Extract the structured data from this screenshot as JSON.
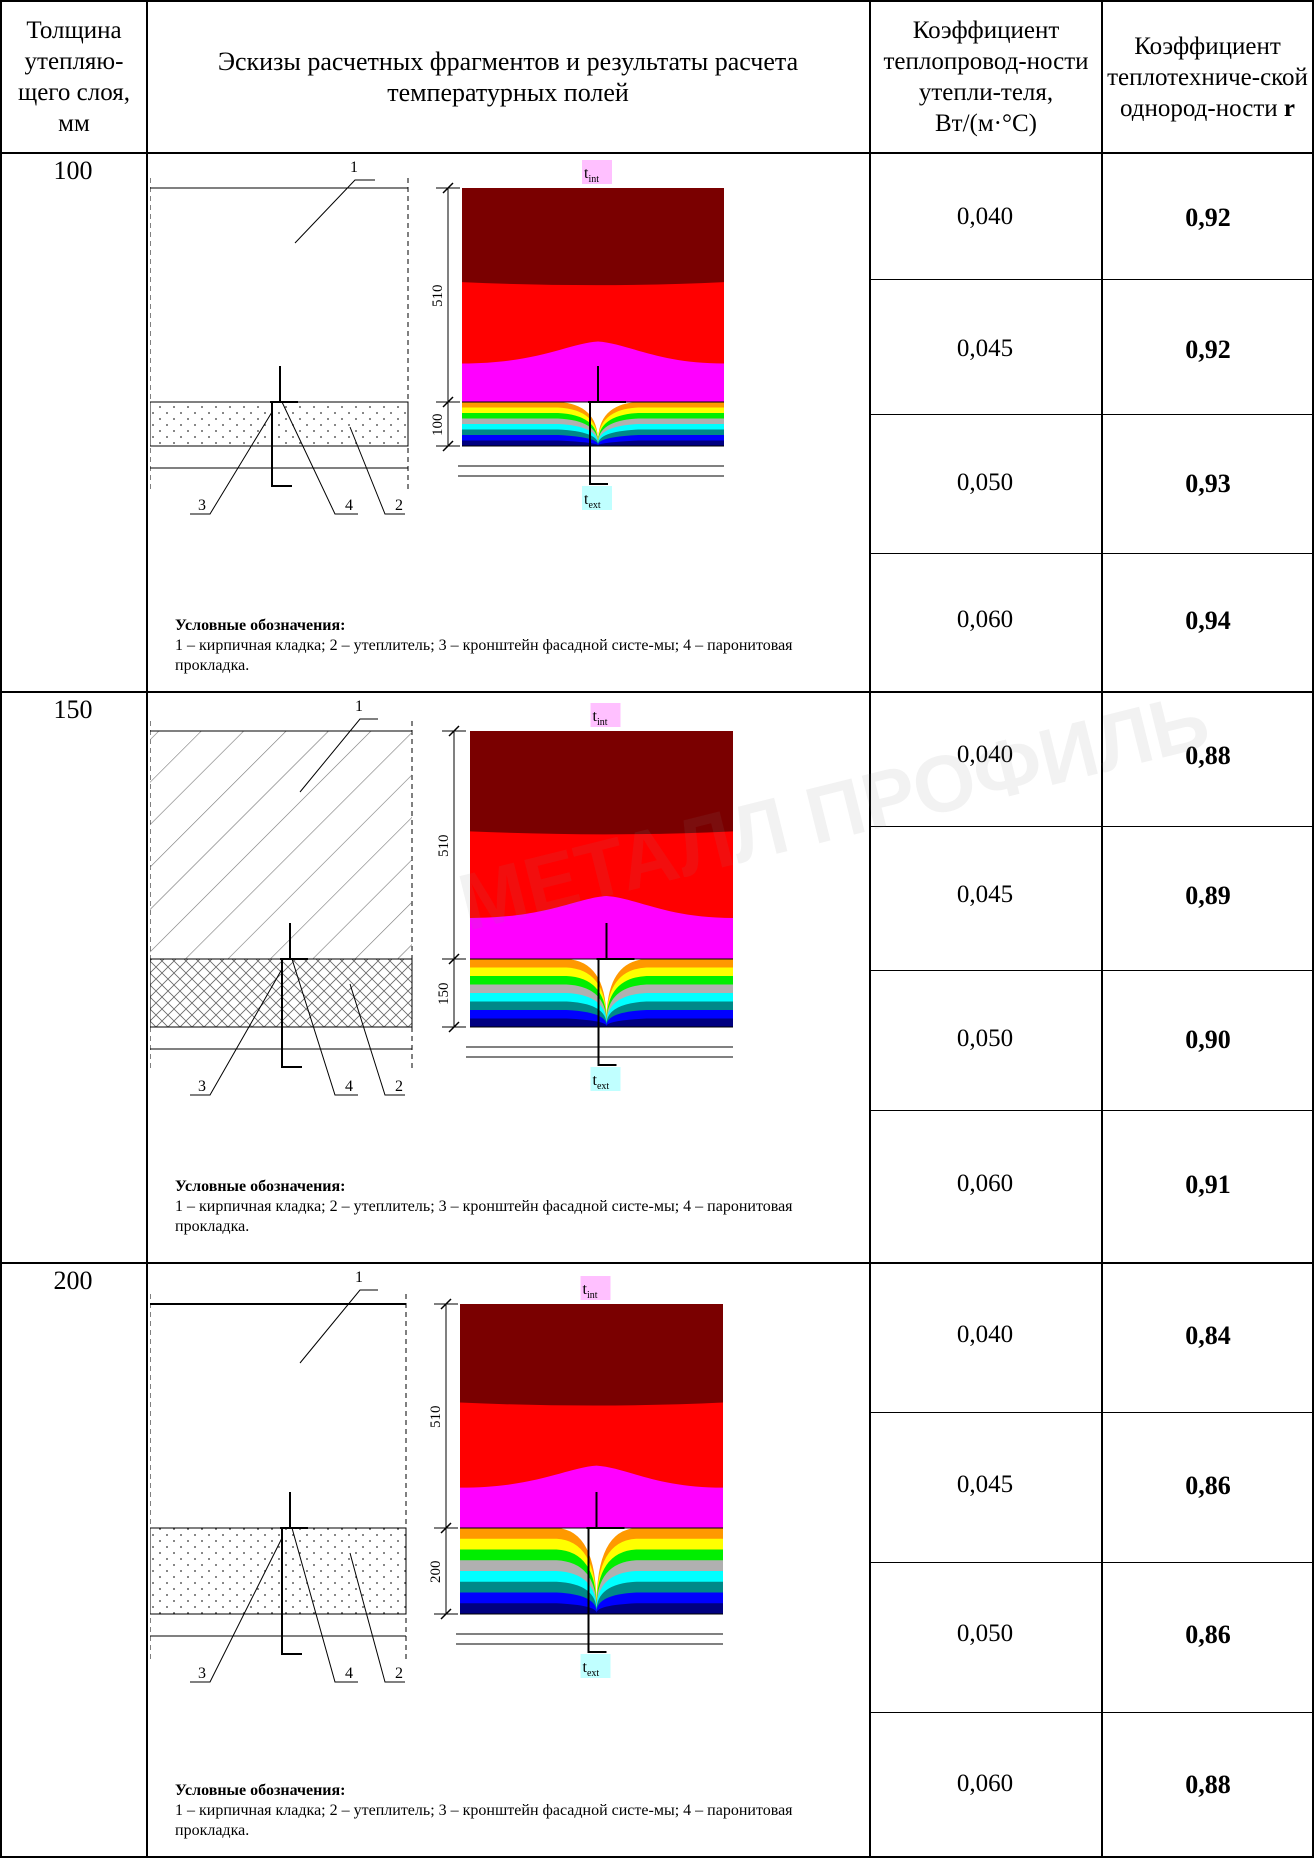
{
  "header": {
    "col1": "Толщина утепляю-щего слоя, мм",
    "col2": "Эскизы расчетных фрагментов и результаты расчета температурных полей",
    "col3": "Коэффициент теплопровод-ности утепли-теля, Вт/(м·°С)",
    "col4": "Коэффициент теплотехниче-ской однород-ности r"
  },
  "sections": [
    {
      "thickness": "100",
      "dims": {
        "wall": "510",
        "insulation": "100"
      },
      "callouts": [
        "1",
        "2",
        "3",
        "4"
      ],
      "temp_labels": {
        "int": "t",
        "int_sub": "int",
        "ext": "t",
        "ext_sub": "ext"
      },
      "legend_title": "Условные обозначения:",
      "legend_text": "1 – кирпичная кладка; 2 – утеплитель; 3 – кронштейн фасадной систе-мы; 4 – паронитовая прокладка.",
      "rows": [
        {
          "lambda": "0,040",
          "r": "0,92"
        },
        {
          "lambda": "0,045",
          "r": "0,92"
        },
        {
          "lambda": "0,050",
          "r": "0,93"
        },
        {
          "lambda": "0,060",
          "r": "0,94"
        }
      ]
    },
    {
      "thickness": "150",
      "dims": {
        "wall": "510",
        "insulation": "150"
      },
      "callouts": [
        "1",
        "2",
        "3",
        "4"
      ],
      "temp_labels": {
        "int": "t",
        "int_sub": "int",
        "ext": "t",
        "ext_sub": "ext"
      },
      "legend_title": "Условные обозначения:",
      "legend_text": "1 – кирпичная кладка; 2 – утеплитель; 3 – кронштейн фасадной систе-мы; 4 – паронитовая прокладка.",
      "rows": [
        {
          "lambda": "0,040",
          "r": "0,88"
        },
        {
          "lambda": "0,045",
          "r": "0,89"
        },
        {
          "lambda": "0,050",
          "r": "0,90"
        },
        {
          "lambda": "0,060",
          "r": "0,91"
        }
      ]
    },
    {
      "thickness": "200",
      "dims": {
        "wall": "510",
        "insulation": "200"
      },
      "callouts": [
        "1",
        "2",
        "3",
        "4"
      ],
      "temp_labels": {
        "int": "t",
        "int_sub": "int",
        "ext": "t",
        "ext_sub": "ext"
      },
      "legend_title": "Условные обозначения:",
      "legend_text": "1 – кирпичная кладка; 2 – утеплитель; 3 – кронштейн фасадной систе-мы; 4 – паронитовая прокладка.",
      "rows": [
        {
          "lambda": "0,040",
          "r": "0,84"
        },
        {
          "lambda": "0,045",
          "r": "0,86"
        },
        {
          "lambda": "0,050",
          "r": "0,86"
        },
        {
          "lambda": "0,060",
          "r": "0,88"
        }
      ]
    }
  ],
  "watermark": {
    "text": "МЕТАЛЛ ПРОФИЛЬ"
  },
  "colors": {
    "dark_red": "#7a0000",
    "red": "#ff0000",
    "magenta": "#ff00ff",
    "orange": "#ff9900",
    "yellow": "#ffff00",
    "green": "#00ee00",
    "gray": "#b0b0b0",
    "cyan": "#00ffff",
    "teal": "#008888",
    "blue": "#0000ff",
    "navy": "#000080",
    "int_label_bg": "#ffc0ff",
    "ext_label_bg": "#c0ffff"
  }
}
